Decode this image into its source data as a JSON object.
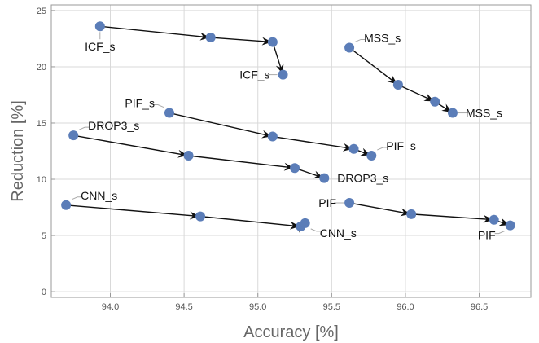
{
  "chart_data": {
    "type": "scatter",
    "title": "",
    "xlabel": "Accuracy [%]",
    "ylabel": "Reduction [%]",
    "xlim": [
      93.6,
      96.85
    ],
    "ylim": [
      -0.5,
      25.5
    ],
    "xticks": [
      94.0,
      94.5,
      95.0,
      95.5,
      96.0,
      96.5
    ],
    "xtick_labels": [
      "94.0",
      "94.5",
      "95.0",
      "95.5",
      "96.0",
      "96.5"
    ],
    "yticks": [
      0,
      5,
      10,
      15,
      20,
      25
    ],
    "ytick_labels": [
      "0",
      "5",
      "10",
      "15",
      "20",
      "25"
    ],
    "grid": true,
    "point_color": "#5b7db8",
    "arrow_color": "#111111",
    "series": [
      {
        "points": [
          [
            93.93,
            23.6
          ],
          [
            94.68,
            22.6
          ],
          [
            95.1,
            22.2
          ],
          [
            95.17,
            19.3
          ]
        ],
        "labels": [
          {
            "text": "ICF_s",
            "at": 0,
            "position": "below"
          },
          {
            "text": "ICF_s",
            "at": 3,
            "position": "left"
          }
        ]
      },
      {
        "points": [
          [
            95.62,
            21.7
          ],
          [
            95.95,
            18.4
          ],
          [
            96.2,
            16.9
          ],
          [
            96.32,
            15.9
          ]
        ],
        "labels": [
          {
            "text": "MSS_s",
            "at": 0,
            "position": "upper-right"
          },
          {
            "text": "MSS_s",
            "at": 3,
            "position": "right"
          }
        ]
      },
      {
        "points": [
          [
            94.4,
            15.9
          ],
          [
            95.1,
            13.8
          ],
          [
            95.65,
            12.7
          ],
          [
            95.77,
            12.1
          ]
        ],
        "labels": [
          {
            "text": "PIF_s",
            "at": 0,
            "position": "upper-left"
          },
          {
            "text": "PIF_s",
            "at": 3,
            "position": "upper-right"
          }
        ]
      },
      {
        "points": [
          [
            93.75,
            13.9
          ],
          [
            94.53,
            12.1
          ],
          [
            95.25,
            11.0
          ],
          [
            95.45,
            10.1
          ]
        ],
        "labels": [
          {
            "text": "DROP3_s",
            "at": 0,
            "position": "upper-right"
          },
          {
            "text": "DROP3_s",
            "at": 3,
            "position": "right"
          }
        ]
      },
      {
        "points": [
          [
            93.7,
            7.7
          ],
          [
            94.61,
            6.7
          ],
          [
            95.29,
            5.8
          ],
          [
            95.32,
            6.1
          ]
        ],
        "labels": [
          {
            "text": "CNN_s",
            "at": 0,
            "position": "upper-right"
          },
          {
            "text": "CNN_s",
            "at": 3,
            "position": "lower-right"
          }
        ]
      },
      {
        "points": [
          [
            95.62,
            7.9
          ],
          [
            96.04,
            6.9
          ],
          [
            96.6,
            6.4
          ],
          [
            96.71,
            5.9
          ]
        ],
        "labels": [
          {
            "text": "PIF",
            "at": 0,
            "position": "left"
          },
          {
            "text": "PIF",
            "at": 3,
            "position": "lower-left"
          }
        ]
      }
    ]
  }
}
